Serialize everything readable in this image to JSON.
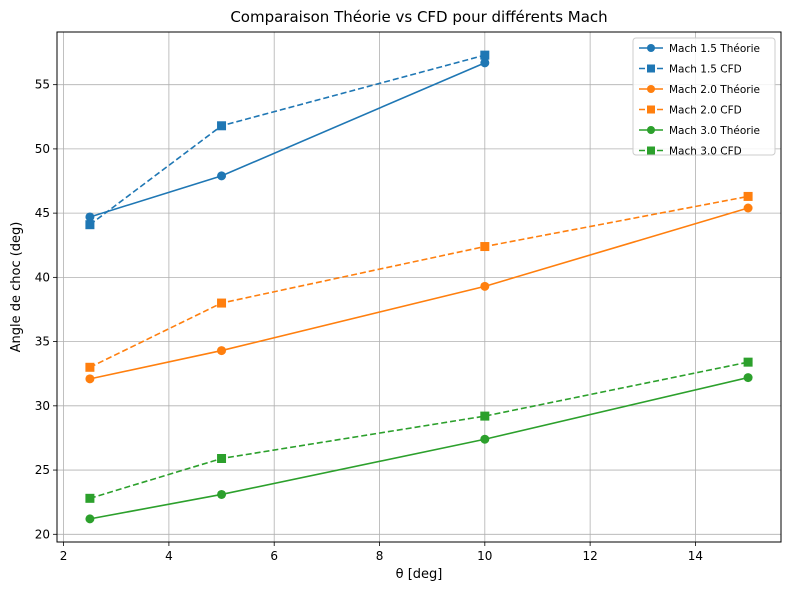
{
  "chart_data": {
    "type": "line",
    "title": "Comparaison Théorie vs CFD pour différents Mach",
    "xlabel": "θ [deg]",
    "ylabel": "Angle de choc (deg)",
    "xlim": [
      1.875,
      15.625
    ],
    "ylim": [
      19.4,
      59.1
    ],
    "xticks": [
      2,
      4,
      6,
      8,
      10,
      12,
      14
    ],
    "yticks": [
      20,
      25,
      30,
      35,
      40,
      45,
      50,
      55
    ],
    "grid": true,
    "legend_position": "top-right",
    "series": [
      {
        "name": "Mach 1.5 Théorie",
        "color": "#1f77b4",
        "style": "solid",
        "marker": "circle",
        "x": [
          2.5,
          5,
          10
        ],
        "y": [
          44.7,
          47.9,
          56.7
        ]
      },
      {
        "name": "Mach 1.5 CFD",
        "color": "#1f77b4",
        "style": "dashed",
        "marker": "square",
        "x": [
          2.5,
          5,
          10
        ],
        "y": [
          44.1,
          51.8,
          57.3
        ]
      },
      {
        "name": "Mach 2.0 Théorie",
        "color": "#ff7f0e",
        "style": "solid",
        "marker": "circle",
        "x": [
          2.5,
          5,
          10,
          15
        ],
        "y": [
          32.1,
          34.3,
          39.3,
          45.4
        ]
      },
      {
        "name": "Mach 2.0 CFD",
        "color": "#ff7f0e",
        "style": "dashed",
        "marker": "square",
        "x": [
          2.5,
          5,
          10,
          15
        ],
        "y": [
          33.0,
          38.0,
          42.4,
          46.3
        ]
      },
      {
        "name": "Mach 3.0 Théorie",
        "color": "#2ca02c",
        "style": "solid",
        "marker": "circle",
        "x": [
          2.5,
          5,
          10,
          15
        ],
        "y": [
          21.2,
          23.1,
          27.4,
          32.2
        ]
      },
      {
        "name": "Mach 3.0 CFD",
        "color": "#2ca02c",
        "style": "dashed",
        "marker": "square",
        "x": [
          2.5,
          5,
          10,
          15
        ],
        "y": [
          22.8,
          25.9,
          29.2,
          33.4
        ]
      }
    ]
  }
}
